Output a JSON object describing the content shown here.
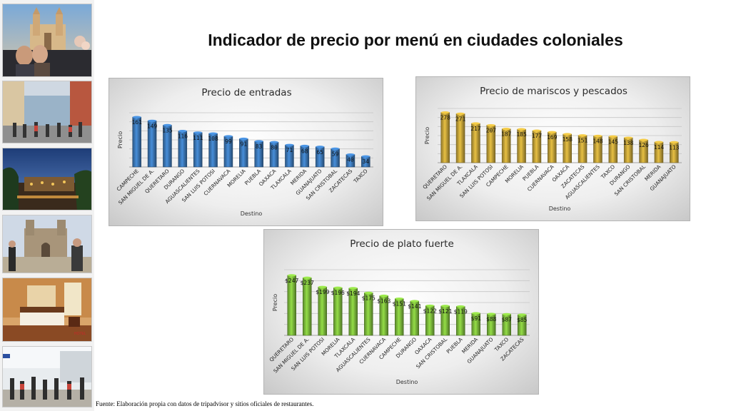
{
  "page": {
    "title": "Indicador de precio por menú en ciudades coloniales",
    "source": "Fuente: Elaboración propia con datos de tripadvisor y sitios oficiales de restaurantes."
  },
  "photos": [
    {
      "icon": "cathedral-terrace-photo"
    },
    {
      "icon": "colonial-street-photo"
    },
    {
      "icon": "evening-courtyard-photo"
    },
    {
      "icon": "church-plaza-photo"
    },
    {
      "icon": "hotel-room-photo"
    },
    {
      "icon": "shopping-street-photo"
    }
  ],
  "colors": {
    "entradas": "#3c78b8",
    "mariscos": "#c4a339",
    "plato_fuerte": "#7dbb3c"
  },
  "chart_data": [
    {
      "type": "bar",
      "title": "Precio de entradas",
      "xlabel": "Destino",
      "ylabel": "Precio",
      "categories": [
        "CAMPECHE",
        "SAN MIGUEL DE A.",
        "QUERETARO",
        "DURANGO",
        "AGUASCALIENTES",
        "SAN LUIS POTOSI",
        "CUERNAVACA",
        "MORELIA",
        "PUEBLA",
        "OAXACA",
        "TLAXCALA",
        "MERIDA",
        "GUANAJUATO",
        "SAN CRISTOBAL",
        "ZACATECAS",
        "TAXCO"
      ],
      "values": [
        161,
        149,
        135,
        116,
        111,
        108,
        99,
        91,
        83,
        80,
        71,
        68,
        65,
        59,
        40,
        34
      ],
      "data_labels": [
        "161",
        "149",
        "135",
        "116",
        "111",
        "108",
        "99",
        "91",
        "83",
        "80",
        "71",
        "68",
        "65",
        "59",
        "40",
        "34"
      ],
      "ylim": [
        0,
        175
      ],
      "grid": true
    },
    {
      "type": "bar",
      "title": "Precio de mariscos y pescados",
      "xlabel": "Destino",
      "ylabel": "Precio",
      "categories": [
        "QUERETARO",
        "SAN MIGUEL DE A.",
        "TLAXCALA",
        "SAN LUIS POTOSI",
        "CAMPECHE",
        "MORELIA",
        "PUEBLA",
        "CUERNAVACA",
        "OAXACA",
        "ZACATECAS",
        "AGUASCALIENTES",
        "TAXCO",
        "DURANGO",
        "SAN CRISTOBAL",
        "MERIDA",
        "GUANAJUATO"
      ],
      "values": [
        278,
        271,
        217,
        207,
        187,
        185,
        177,
        169,
        158,
        151,
        148,
        145,
        138,
        126,
        114,
        113
      ],
      "data_labels": [
        "278",
        "271",
        "217",
        "207",
        "187",
        "185",
        "177",
        "169",
        "158",
        "151",
        "148",
        "145",
        "138",
        "126",
        "114",
        "113"
      ],
      "ylim": [
        0,
        300
      ],
      "grid": true
    },
    {
      "type": "bar",
      "title": "Precio de plato fuerte",
      "xlabel": "Destino",
      "ylabel": "Precio",
      "categories": [
        "QUERETARO",
        "SAN MIGUEL DE A.",
        "SAN LUIS POTOSI",
        "MORELIA",
        "TLAXCALA",
        "AGUASCALIENTES",
        "CUERNAVACA",
        "CAMPECHE",
        "DURANGO",
        "OAXACA",
        "SAN CRISTOBAL",
        "PUEBLA",
        "MERIDA",
        "GUANAJUATO",
        "TAXCO",
        "ZACATECAS"
      ],
      "values": [
        247,
        237,
        199,
        196,
        194,
        175,
        163,
        151,
        141,
        122,
        121,
        119,
        91,
        88,
        87,
        85
      ],
      "data_labels": [
        "$247",
        "$237",
        "$199",
        "$196",
        "$194",
        "$175",
        "$163",
        "$151",
        "$141",
        "$122",
        "$121",
        "$119",
        "$91",
        "$88",
        "$87",
        "$85"
      ],
      "ylim": [
        0,
        270
      ],
      "grid": true
    }
  ]
}
